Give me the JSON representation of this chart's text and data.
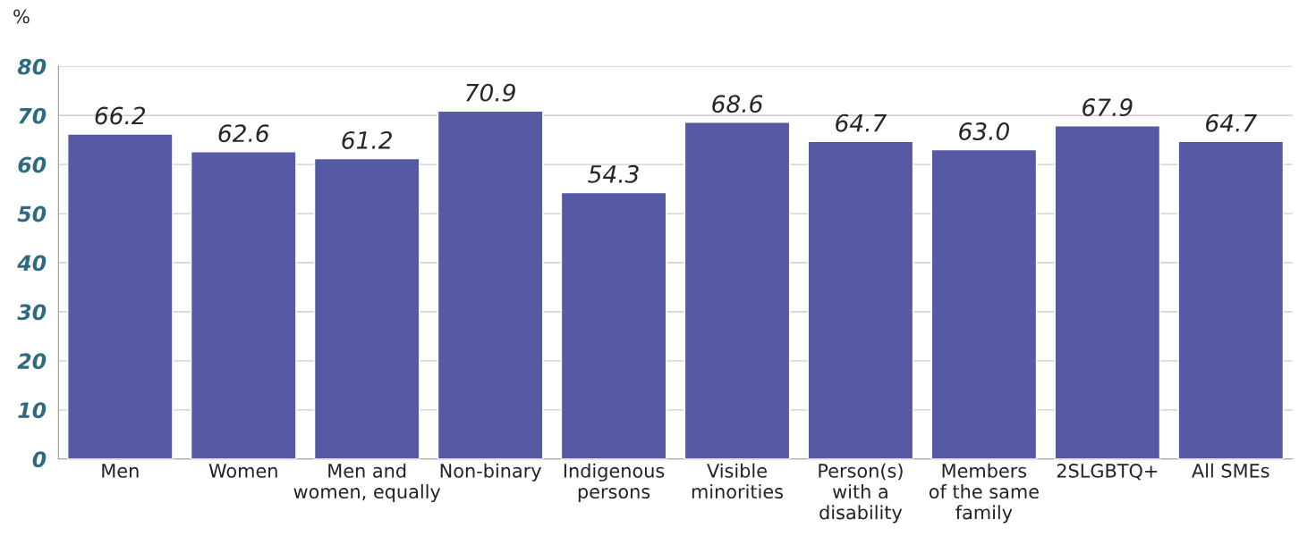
{
  "chart_data": {
    "type": "bar",
    "ylabel": "%",
    "categories": [
      "Men",
      "Women",
      "Men and\nwomen, equally",
      "Non-binary",
      "Indigenous\npersons",
      "Visible\nminorities",
      "Person(s)\nwith a\ndisability",
      "Members\nof the same\nfamily",
      "2SLGBTQ+",
      "All SMEs"
    ],
    "values": [
      66.2,
      62.6,
      61.2,
      70.9,
      54.3,
      68.6,
      64.7,
      63.0,
      67.9,
      64.7
    ],
    "value_labels": [
      "66.2",
      "62.6",
      "61.2",
      "70.9",
      "54.3",
      "68.6",
      "64.7",
      "63.0",
      "67.9",
      "64.7"
    ],
    "color": "#5659a4",
    "ylim": [
      0,
      80
    ],
    "yticks": [
      0,
      10,
      20,
      30,
      40,
      50,
      60,
      70,
      80
    ],
    "grid": "y"
  }
}
